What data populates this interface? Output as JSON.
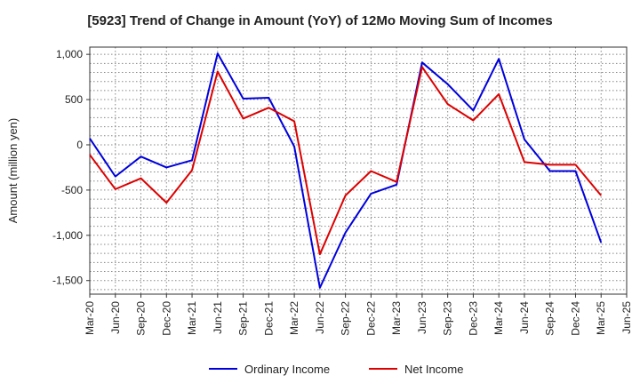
{
  "chart_data": {
    "type": "line",
    "title": "[5923]  Trend of Change in Amount (YoY) of 12Mo Moving Sum of Incomes",
    "ylabel": "Amount (million yen)",
    "xlabel": "",
    "ylim": [
      -1650,
      1080
    ],
    "yticks": [
      1000,
      500,
      0,
      -500,
      -1000,
      -1500
    ],
    "ytick_labels": [
      "1,000",
      "500",
      "0",
      "-500",
      "-1,000",
      "-1,500"
    ],
    "categories": [
      "Mar-20",
      "Jun-20",
      "Sep-20",
      "Dec-20",
      "Mar-21",
      "Jun-21",
      "Sep-21",
      "Dec-21",
      "Mar-22",
      "Jun-22",
      "Sep-22",
      "Dec-22",
      "Mar-23",
      "Jun-23",
      "Sep-23",
      "Dec-23",
      "Mar-24",
      "Jun-24",
      "Sep-24",
      "Dec-24",
      "Mar-25",
      "Jun-25"
    ],
    "series": [
      {
        "name": "Ordinary Income",
        "color": "#0000dd",
        "values": [
          70,
          -350,
          -130,
          -250,
          -170,
          1010,
          510,
          520,
          -20,
          -1580,
          -970,
          -540,
          -440,
          910,
          670,
          380,
          950,
          60,
          -290,
          -290,
          -1080,
          null
        ]
      },
      {
        "name": "Net Income",
        "color": "#dd0000",
        "values": [
          -110,
          -490,
          -370,
          -640,
          -280,
          810,
          290,
          410,
          260,
          -1210,
          -560,
          -290,
          -410,
          860,
          450,
          270,
          560,
          -190,
          -220,
          -220,
          -560,
          null
        ]
      }
    ],
    "grid": true,
    "legend": "bottom-center"
  }
}
